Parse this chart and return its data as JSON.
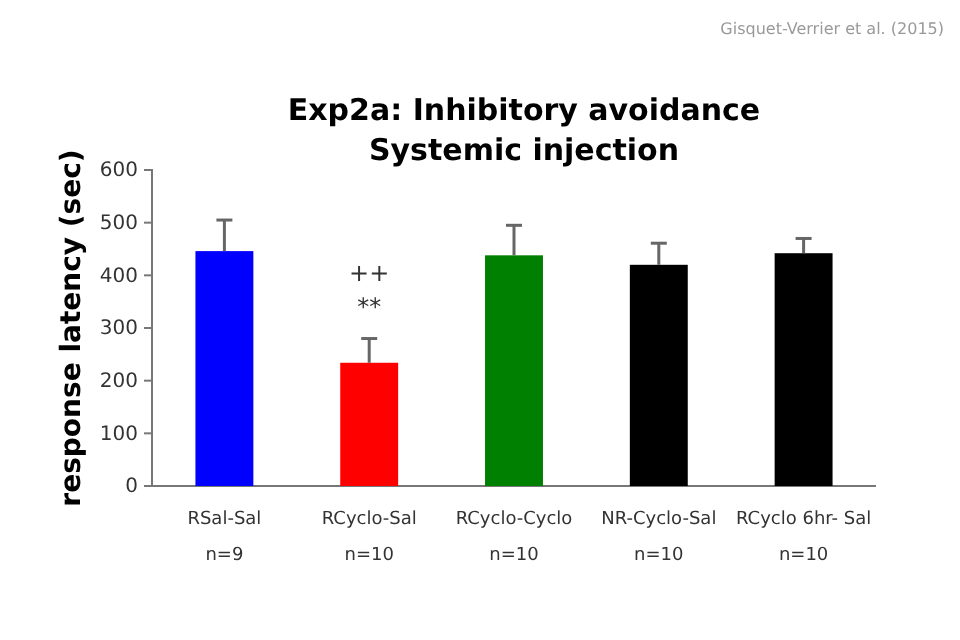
{
  "chart_data": {
    "type": "bar",
    "title": "Exp2a: Inhibitory avoidance",
    "subtitle": "Systemic injection",
    "ylabel": "response latency (sec)",
    "categories": [
      "RSal-Sal\nn=9",
      "RCyclo-Sal\nn=10",
      "RCyclo-Cyclo\nn=10",
      "NR-Cyclo-Sal\nn=10",
      "RCyclo 6hr- Sal\nn=10"
    ],
    "values": [
      446,
      234,
      438,
      420,
      442
    ],
    "colors": [
      "#0000ff",
      "#ff0000",
      "#008000",
      "#000000",
      "#000000"
    ],
    "errors": [
      59,
      46,
      57,
      41,
      28
    ],
    "ylim": [
      0,
      600
    ],
    "yticks": [
      0,
      100,
      200,
      300,
      400,
      500,
      600
    ],
    "grid": false,
    "annotations": [
      "++",
      "**",
      "Gisquet-Verrier et al. (2015)"
    ]
  }
}
